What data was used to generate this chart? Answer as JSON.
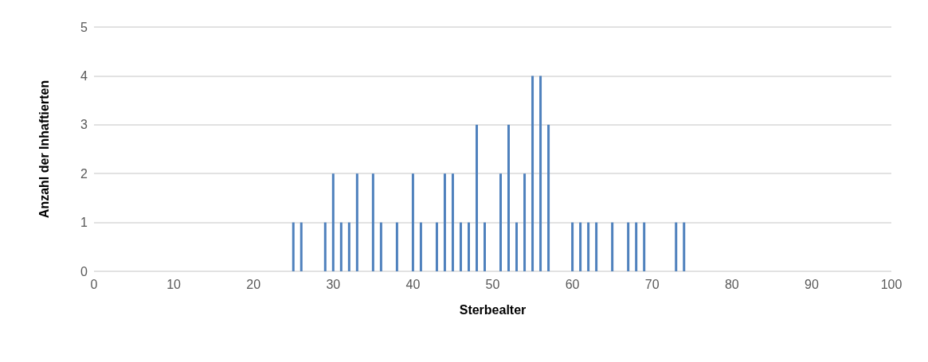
{
  "chart_data": {
    "type": "bar",
    "xlabel": "Sterbealter",
    "ylabel": "Anzahl der Inhaftierten",
    "x": [
      25,
      26,
      29,
      30,
      31,
      32,
      33,
      35,
      36,
      38,
      40,
      41,
      43,
      44,
      45,
      46,
      47,
      48,
      49,
      51,
      52,
      53,
      54,
      55,
      56,
      57,
      60,
      61,
      62,
      63,
      65,
      67,
      68,
      69,
      73,
      74
    ],
    "values": [
      1,
      1,
      1,
      2,
      1,
      1,
      2,
      2,
      1,
      1,
      2,
      1,
      1,
      2,
      2,
      1,
      1,
      3,
      1,
      2,
      3,
      1,
      2,
      4,
      4,
      3,
      1,
      1,
      1,
      1,
      1,
      1,
      1,
      1,
      1,
      1
    ],
    "color": "#4f81bd",
    "xlim": [
      0,
      100
    ],
    "xticks": [
      0,
      10,
      20,
      30,
      40,
      50,
      60,
      70,
      80,
      90,
      100
    ],
    "ylim": [
      0,
      5
    ],
    "yticks": [
      0,
      1,
      2,
      3,
      4,
      5
    ],
    "grid": "y"
  }
}
